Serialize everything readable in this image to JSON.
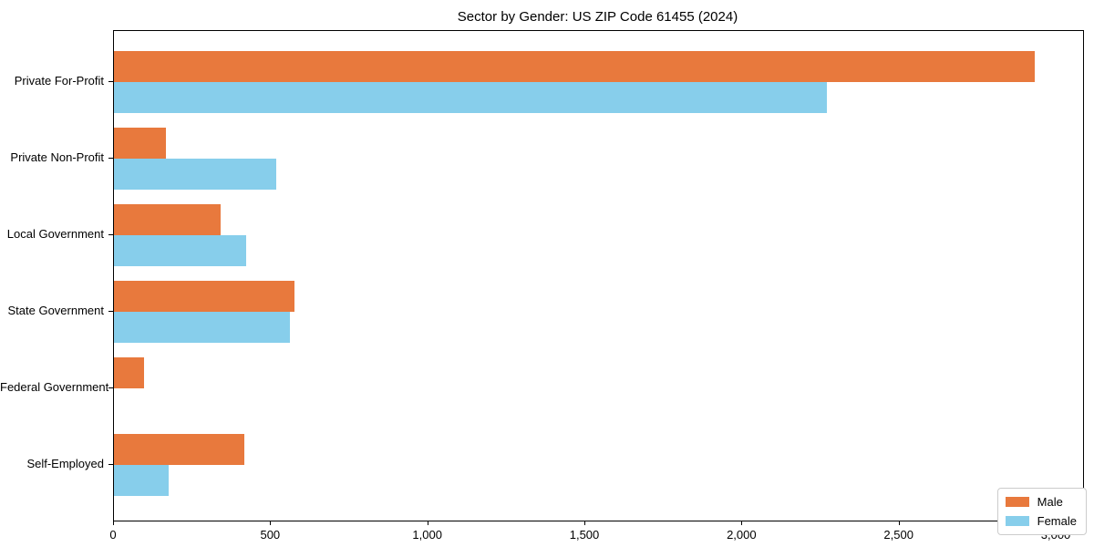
{
  "chart_data": {
    "type": "bar",
    "orientation": "horizontal",
    "title": "Sector by Gender: US ZIP Code 61455 (2024)",
    "categories": [
      "Private For-Profit",
      "Private Non-Profit",
      "Local Government",
      "State Government",
      "Federal Government",
      "Self-Employed"
    ],
    "series": [
      {
        "name": "Male",
        "color": "#e8793d",
        "values": [
          2930,
          165,
          340,
          575,
          95,
          415
        ]
      },
      {
        "name": "Female",
        "color": "#87ceeb",
        "values": [
          2270,
          515,
          420,
          560,
          0,
          175
        ]
      }
    ],
    "xlabel": "",
    "ylabel": "",
    "xlim": [
      0,
      3084
    ],
    "xticks": [
      0,
      500,
      1000,
      1500,
      2000,
      2500,
      3000
    ],
    "xtick_labels": [
      "0",
      "500",
      "1,000",
      "1,500",
      "2,000",
      "2,500",
      "3,000"
    ],
    "grid": false,
    "legend_position": "lower right",
    "legend_entries": [
      "Male",
      "Female"
    ]
  }
}
